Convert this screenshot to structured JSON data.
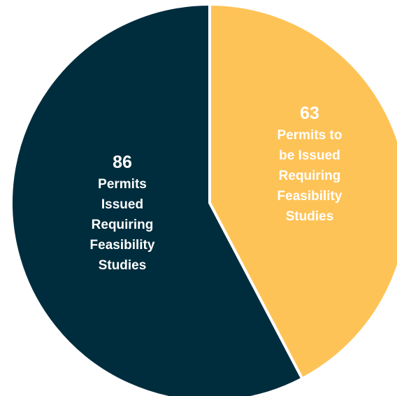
{
  "chart_data": {
    "type": "pie",
    "title": "",
    "slices": [
      {
        "value": 63,
        "label_lines": [
          "Permits to",
          "be Issued",
          "Requiring",
          "Feasibility",
          "Studies"
        ],
        "color": "#FEC357"
      },
      {
        "value": 86,
        "label_lines": [
          "Permits",
          "Issued",
          "Requiring",
          "Feasibility",
          "Studies"
        ],
        "color": "#002D3D"
      }
    ],
    "label_color": "#FFFFFF",
    "background": "#FFFFFF",
    "legend": "none"
  }
}
